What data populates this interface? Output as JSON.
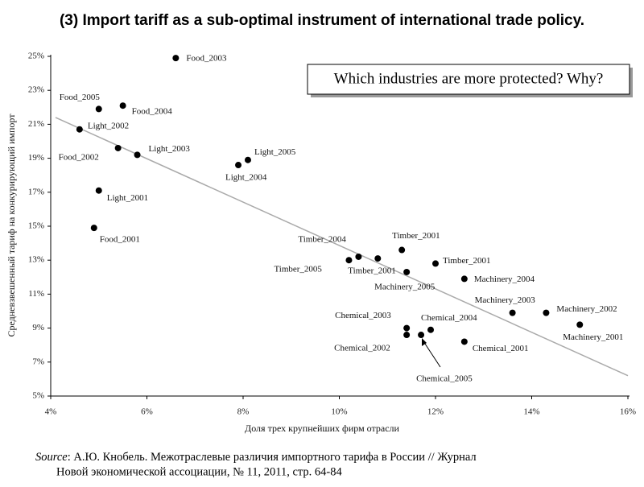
{
  "title": "(3) Import tariff as a sub-optimal instrument of international trade policy.",
  "callout": "Which industries are more protected? Why?",
  "source": {
    "label": "Source",
    "line1": ": А.Ю. Кнобель. Межотраслевые различия импортного тарифа в России // Журнал",
    "line2": "Новой экономической ассоциации, № 11, 2011,  стр. 64-84"
  },
  "chart_data": {
    "type": "scatter",
    "x_label": "Доля трех крупнейших фирм отрасли",
    "y_label": "Средневзвешенный тариф на конкурирующий импорт",
    "point_labels": [
      "Food_2003",
      "Food_2005",
      "Food_2004",
      "Light_2002",
      "Food_2002",
      "Light_2003",
      "Light_2005",
      "Light_2004",
      "Light_2001",
      "Food_2001",
      "Timber_2004",
      "Timber_2005",
      "Timber_2001",
      "Timber_2001",
      "Timber_2001",
      "Machinery_2005",
      "Machinery_2004",
      "Machinery_2003",
      "Machinery_2002",
      "Machinery_2001",
      "Chemical_2003",
      "Chemical_2004",
      "Chemical_2002",
      "Chemical_2005",
      "Chemical_2001"
    ],
    "x": [
      6.6,
      5.0,
      5.5,
      4.6,
      5.4,
      5.8,
      8.1,
      7.9,
      5.0,
      4.9,
      10.4,
      10.2,
      10.8,
      11.3,
      12.0,
      11.4,
      12.6,
      13.6,
      14.3,
      15.0,
      11.4,
      11.9,
      11.4,
      11.7,
      12.6
    ],
    "y": [
      24.9,
      21.9,
      22.1,
      20.7,
      19.6,
      19.2,
      18.9,
      18.6,
      17.1,
      14.9,
      13.2,
      13.0,
      13.1,
      13.6,
      12.8,
      12.3,
      11.9,
      9.9,
      9.9,
      9.2,
      9.0,
      8.9,
      8.6,
      8.6,
      8.2
    ],
    "color": "#000000",
    "trendline": {
      "x": [
        4.1,
        16
      ],
      "y": [
        21.4,
        6.2
      ],
      "color": "#aaaaaa"
    },
    "xlim": [
      4,
      16
    ],
    "ylim": [
      5,
      25
    ],
    "xticks": [
      {
        "value": 4,
        "label": "4%"
      },
      {
        "value": 6,
        "label": "6%"
      },
      {
        "value": 8,
        "label": "8%"
      },
      {
        "value": 10,
        "label": "10%"
      },
      {
        "value": 12,
        "label": "12%"
      },
      {
        "value": 14,
        "label": "14%"
      },
      {
        "value": 16,
        "label": "16%"
      }
    ],
    "yticks": [
      {
        "value": 5,
        "label": "5%"
      },
      {
        "value": 7,
        "label": "7%"
      },
      {
        "value": 9,
        "label": "9%"
      },
      {
        "value": 11,
        "label": "11%"
      },
      {
        "value": 13,
        "label": "13%"
      },
      {
        "value": 15,
        "label": "15%"
      },
      {
        "value": 17,
        "label": "17%"
      },
      {
        "value": 19,
        "label": "19%"
      },
      {
        "value": 21,
        "label": "21%"
      },
      {
        "value": 23,
        "label": "23%"
      },
      {
        "value": 25,
        "label": "25%"
      }
    ]
  }
}
